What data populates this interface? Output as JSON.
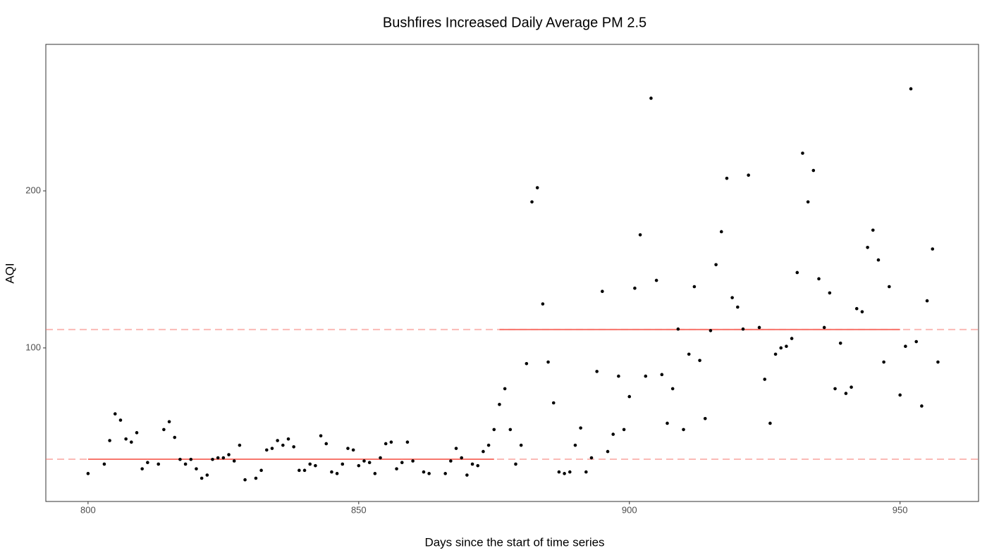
{
  "chart_data": {
    "type": "scatter",
    "title": "Bushfires Increased Daily Average PM 2.5",
    "x_label": "Days since the start of time series",
    "y_label": "AQI",
    "xlim": [
      792.2,
      964.5
    ],
    "ylim": [
      2.2,
      293.3
    ],
    "xticks": [
      800,
      850,
      900,
      950
    ],
    "yticks": [
      100,
      200
    ],
    "color": "#000000",
    "x": [
      800,
      803,
      804,
      805,
      806,
      807,
      808,
      809,
      810,
      811,
      813,
      814,
      815,
      816,
      817,
      818,
      819,
      820,
      821,
      822,
      823,
      824,
      825,
      826,
      827,
      828,
      829,
      831,
      832,
      833,
      834,
      835,
      836,
      837,
      838,
      839,
      840,
      841,
      842,
      843,
      844,
      845,
      846,
      847,
      848,
      849,
      850,
      851,
      852,
      853,
      854,
      855,
      856,
      857,
      858,
      859,
      860,
      862,
      863,
      866,
      867,
      868,
      869,
      870,
      871,
      872,
      873,
      874,
      875,
      876,
      877,
      878,
      879,
      880,
      881,
      882,
      883,
      884,
      885,
      886,
      887,
      888,
      889,
      890,
      891,
      892,
      893,
      894,
      895,
      896,
      897,
      898,
      899,
      900,
      901,
      902,
      903,
      904,
      905,
      906,
      907,
      908,
      909,
      910,
      911,
      912,
      913,
      914,
      915,
      916,
      917,
      918,
      919,
      920,
      921,
      922,
      924,
      925,
      926,
      927,
      928,
      929,
      930,
      931,
      932,
      933,
      934,
      935,
      936,
      937,
      938,
      939,
      940,
      941,
      942,
      943,
      944,
      945,
      946,
      947,
      948,
      950,
      951,
      952,
      953,
      954,
      955,
      956,
      957
    ],
    "values": [
      20,
      26,
      41,
      58,
      54,
      42,
      40,
      46,
      23,
      27,
      26,
      48,
      53,
      43,
      29,
      26,
      29,
      23,
      17,
      19,
      29,
      30,
      30,
      32,
      28,
      38,
      16,
      17,
      22,
      35,
      36,
      41,
      38,
      42,
      37,
      22,
      22,
      26,
      25,
      44,
      39,
      21,
      20,
      26,
      36,
      35,
      25,
      28,
      27,
      20,
      30,
      39,
      40,
      23,
      27,
      40,
      28,
      21,
      20,
      20,
      28,
      36,
      30,
      19,
      26,
      25,
      34,
      38,
      48,
      64,
      74,
      48,
      26,
      38,
      90,
      193,
      202,
      128,
      91,
      65,
      21,
      20,
      21,
      38,
      49,
      21,
      30,
      85,
      136,
      34,
      45,
      82,
      48,
      69,
      138,
      172,
      82,
      259,
      143,
      83,
      52,
      74,
      112,
      48,
      96,
      139,
      92,
      55,
      111,
      153,
      174,
      208,
      132,
      126,
      112,
      210,
      113,
      80,
      52,
      96,
      100,
      101,
      106,
      148,
      224,
      193,
      213,
      144,
      113,
      135,
      74,
      103,
      71,
      75,
      125,
      123,
      164,
      175,
      156,
      91,
      139,
      70,
      101,
      265,
      104,
      63,
      130,
      163,
      91
    ],
    "segments": [
      {
        "x": [
          800,
          875
        ],
        "y": 29.1
      },
      {
        "x": [
          876,
          950
        ],
        "y": 111.7
      }
    ],
    "segment_color": "#f8766d"
  }
}
